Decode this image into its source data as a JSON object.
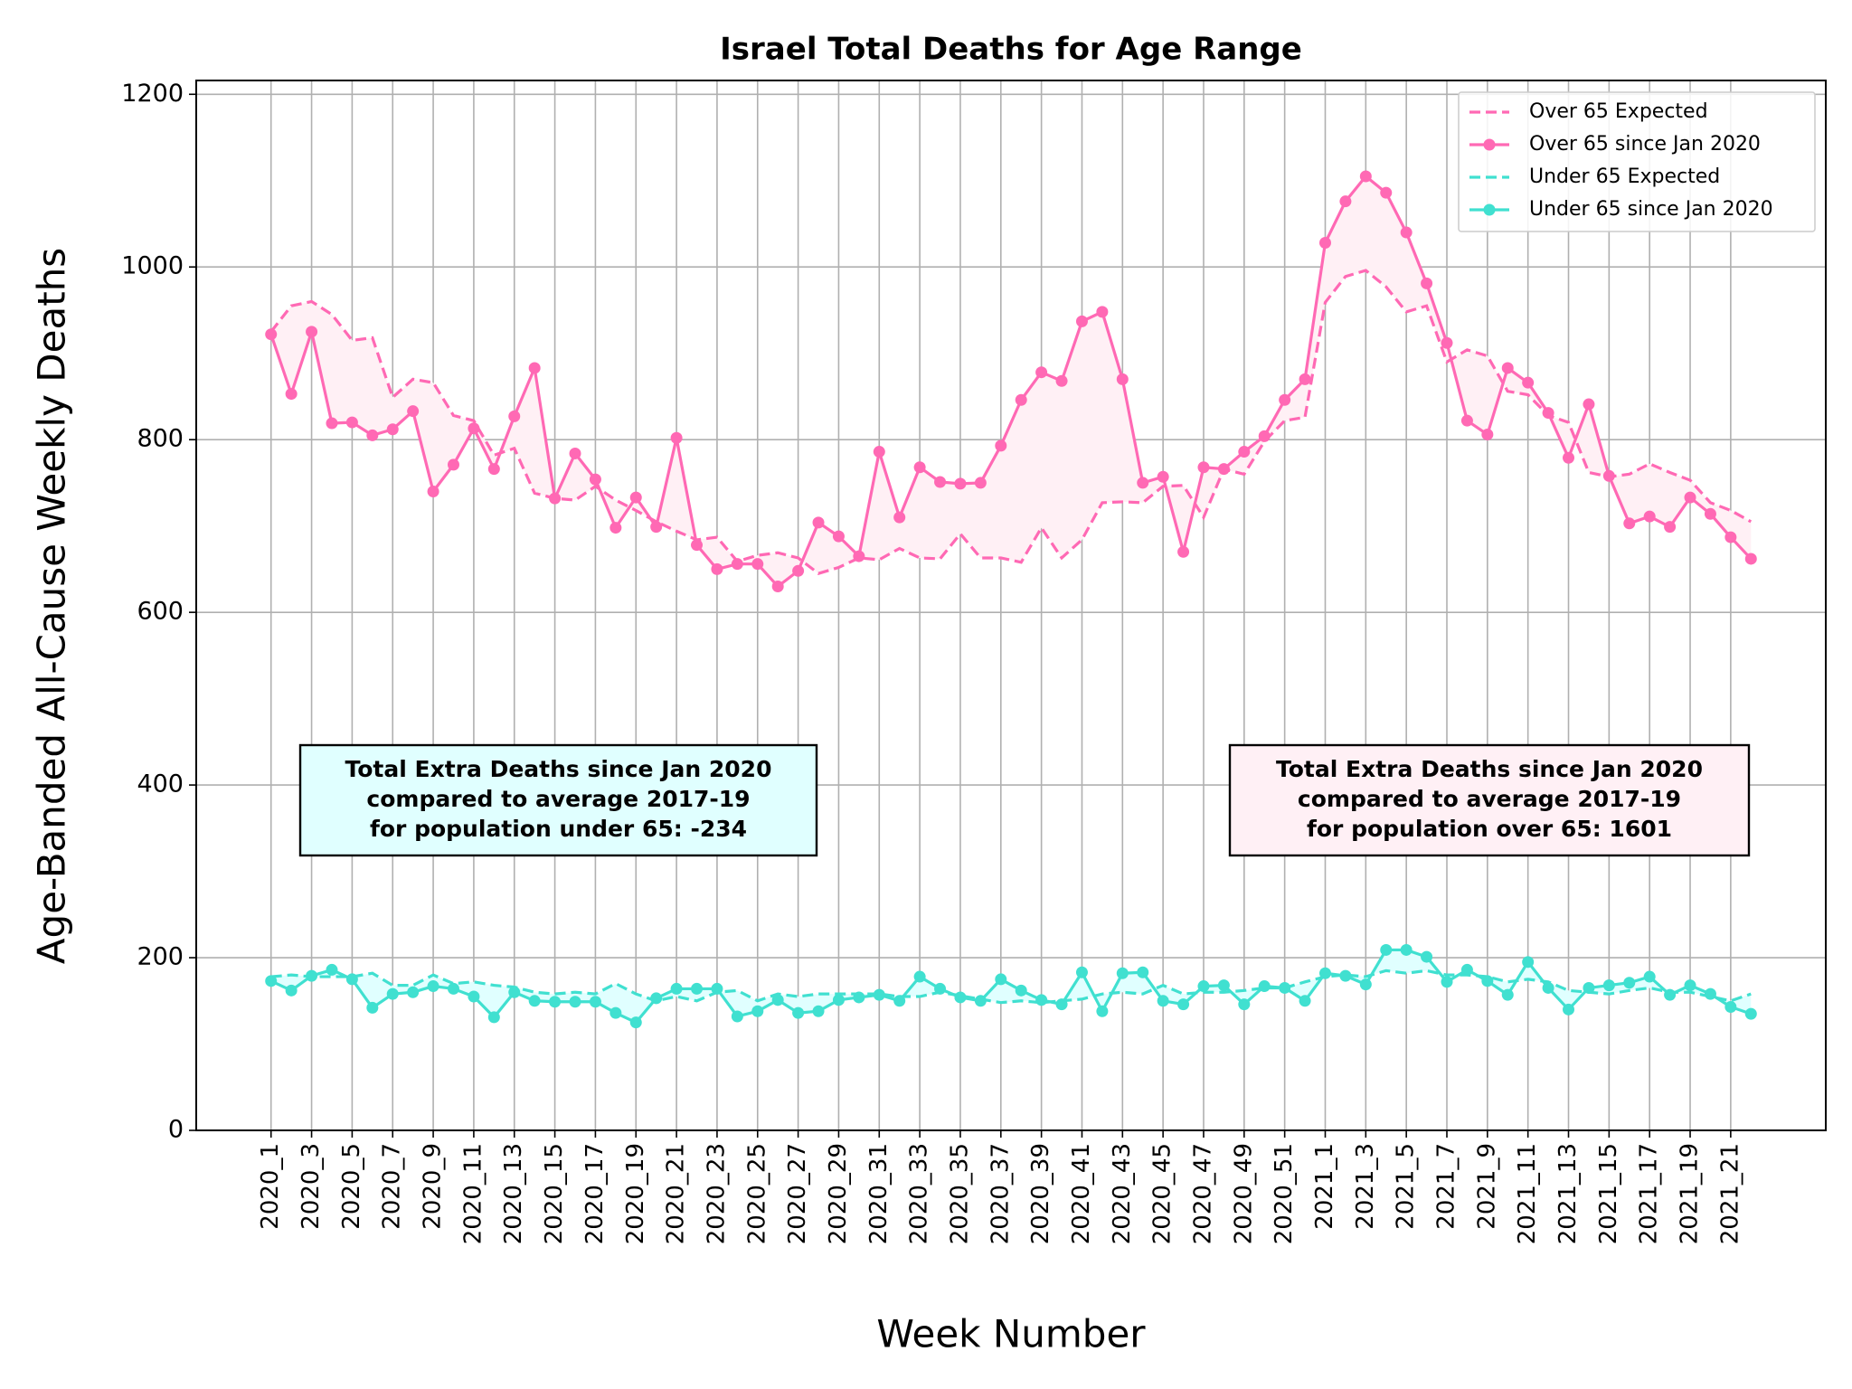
{
  "chart_data": {
    "type": "line",
    "title": "Israel Total Deaths for Age Range",
    "x_label": "Week Number",
    "y_label": "Age-Banded All-Cause Weekly Deaths",
    "categories": [
      "2020_1",
      null,
      "2020_3",
      null,
      "2020_5",
      null,
      "2020_7",
      null,
      "2020_9",
      null,
      "2020_11",
      null,
      "2020_13",
      null,
      "2020_15",
      null,
      "2020_17",
      null,
      "2020_19",
      null,
      "2020_21",
      null,
      "2020_23",
      null,
      "2020_25",
      null,
      "2020_27",
      null,
      "2020_29",
      null,
      "2020_31",
      null,
      "2020_33",
      null,
      "2020_35",
      null,
      "2020_37",
      null,
      "2020_39",
      null,
      "2020_41",
      null,
      "2020_43",
      null,
      "2020_45",
      null,
      "2020_47",
      null,
      "2020_49",
      null,
      "2020_51",
      null,
      "2021_1",
      null,
      "2021_3",
      null,
      "2021_5",
      null,
      "2021_7",
      null,
      "2021_9",
      null,
      "2021_11",
      null,
      "2021_13",
      null,
      "2021_15",
      null,
      "2021_17",
      null,
      "2021_19",
      null,
      "2021_21",
      null
    ],
    "series": [
      {
        "name": "Over 65 Expected",
        "color": "#ff69b4",
        "style": "dashed",
        "values": [
          925,
          955,
          960,
          945,
          915,
          918,
          849,
          870,
          866,
          828,
          822,
          782,
          790,
          738,
          732,
          730,
          746,
          730,
          718,
          705,
          694,
          684,
          687,
          659,
          666,
          669,
          663,
          645,
          652,
          663,
          661,
          674,
          663,
          662,
          691,
          663,
          663,
          658,
          698,
          663,
          684,
          727,
          728,
          727,
          746,
          747,
          710,
          766,
          760,
          798,
          822,
          826,
          959,
          989,
          996,
          977,
          948,
          955,
          890,
          904,
          897,
          856,
          852,
          828,
          820,
          762,
          757,
          760,
          772,
          762,
          753,
          727,
          718,
          705
        ]
      },
      {
        "name": "Over 65 since Jan 2020",
        "color": "#ff69b4",
        "style": "marker",
        "fill": "#fff0f5",
        "values": [
          922,
          853,
          925,
          819,
          820,
          805,
          812,
          833,
          740,
          771,
          813,
          766,
          827,
          883,
          732,
          784,
          754,
          698,
          733,
          699,
          802,
          678,
          650,
          656,
          656,
          630,
          648,
          704,
          688,
          665,
          786,
          710,
          768,
          751,
          749,
          750,
          793,
          846,
          878,
          868,
          937,
          948,
          870,
          750,
          757,
          670,
          768,
          766,
          786,
          804,
          846,
          870,
          1028,
          1076,
          1105,
          1086,
          1040,
          981,
          912,
          822,
          806,
          883,
          866,
          831,
          779,
          841,
          758,
          703,
          711,
          699,
          733,
          714,
          687,
          662
        ]
      },
      {
        "name": "Under 65 Expected",
        "color": "#40e0d0",
        "style": "dashed",
        "values": [
          178,
          180,
          178,
          178,
          178,
          182,
          168,
          168,
          180,
          170,
          172,
          168,
          166,
          160,
          158,
          160,
          158,
          170,
          158,
          150,
          155,
          150,
          160,
          162,
          150,
          158,
          155,
          158,
          158,
          158,
          158,
          155,
          155,
          160,
          156,
          152,
          148,
          150,
          148,
          150,
          152,
          158,
          160,
          158,
          168,
          158,
          160,
          160,
          162,
          165,
          165,
          172,
          178,
          180,
          178,
          185,
          182,
          185,
          180,
          180,
          178,
          172,
          175,
          172,
          162,
          160,
          158,
          162,
          165,
          160,
          160,
          155,
          150,
          158
        ]
      },
      {
        "name": "Under 65 since Jan 2020",
        "color": "#40e0d0",
        "style": "marker",
        "fill": "#e0ffff",
        "values": [
          173,
          162,
          179,
          186,
          175,
          142,
          158,
          160,
          167,
          164,
          155,
          131,
          160,
          150,
          149,
          149,
          149,
          136,
          125,
          153,
          164,
          164,
          164,
          132,
          138,
          151,
          136,
          138,
          151,
          154,
          157,
          150,
          178,
          164,
          154,
          150,
          175,
          162,
          151,
          146,
          183,
          138,
          182,
          183,
          150,
          146,
          167,
          168,
          146,
          167,
          165,
          150,
          182,
          179,
          169,
          209,
          209,
          201,
          172,
          186,
          173,
          157,
          195,
          165,
          140,
          165,
          168,
          171,
          178,
          157,
          168,
          158,
          143,
          135
        ]
      }
    ],
    "ylim": [
      0,
      1216
    ],
    "yticks": [
      0,
      200,
      400,
      600,
      800,
      1000,
      1200
    ],
    "grid": true,
    "legend": "upper right",
    "annotations": [
      {
        "lines": [
          "Total Extra Deaths since Jan 2020",
          "compared to average 2017-19",
          "for population under 65: -234"
        ],
        "color": "#e0ffff"
      },
      {
        "lines": [
          "Total Extra Deaths since Jan 2020",
          "compared to average 2017-19",
          "for population over 65: 1601"
        ],
        "color": "#fff0f5"
      }
    ]
  }
}
